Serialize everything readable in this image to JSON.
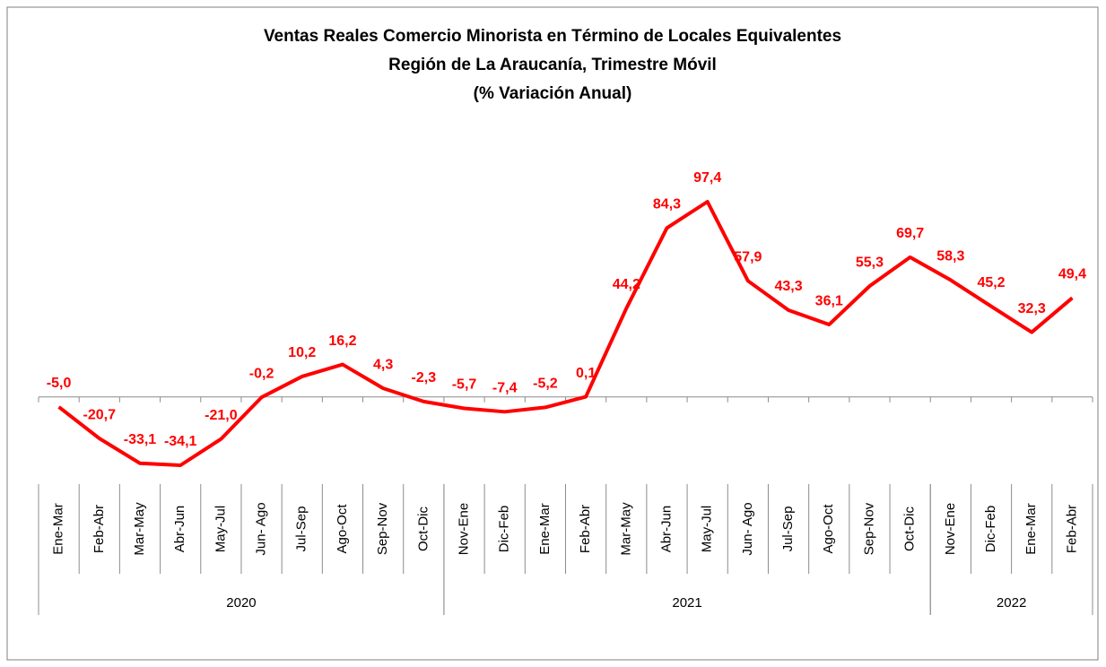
{
  "chart_data": {
    "type": "line",
    "title": [
      "Ventas Reales Comercio Minorista  en Término de Locales Equivalentes",
      "Región de La Araucanía, Trimestre Móvil",
      "(% Variación Anual)"
    ],
    "groups": [
      {
        "label": "2020",
        "categories": [
          "Ene-Mar",
          "Feb-Abr",
          "Mar-May",
          "Abr-Jun",
          "May-Jul",
          "Jun- Ago",
          "Jul-Sep",
          "Ago-Oct",
          "Sep-Nov",
          "Oct-Dic"
        ]
      },
      {
        "label": "2021",
        "categories": [
          "Nov-Ene",
          "Dic-Feb",
          "Ene-Mar",
          "Feb-Abr",
          "Mar-May",
          "Abr-Jun",
          "May-Jul",
          "Jun- Ago",
          "Jul-Sep",
          "Ago-Oct",
          "Sep-Nov",
          "Oct-Dic"
        ]
      },
      {
        "label": "2022",
        "categories": [
          "Nov-Ene",
          "Dic-Feb",
          "Ene-Mar",
          "Feb-Abr"
        ]
      }
    ],
    "series": [
      {
        "color": "#ff0000",
        "values": [
          -5.0,
          -20.7,
          -33.1,
          -34.1,
          -21.0,
          -0.2,
          10.2,
          16.2,
          4.3,
          -2.3,
          -5.7,
          -7.4,
          -5.2,
          0.1,
          44.2,
          84.3,
          97.4,
          57.9,
          43.3,
          36.1,
          55.3,
          69.7,
          58.3,
          45.2,
          32.3,
          49.4
        ],
        "value_labels": [
          "-5,0",
          "-20,7",
          "-33,1",
          "-34,1",
          "-21,0",
          "-0,2",
          "10,2",
          "16,2",
          "4,3",
          "-2,3",
          "-5,7",
          "-7,4",
          "-5,2",
          "0,1",
          "44,2",
          "84,3",
          "97,4",
          "57,9",
          "43,3",
          "36,1",
          "55,3",
          "69,7",
          "58,3",
          "45,2",
          "32,3",
          "49,4"
        ]
      }
    ]
  }
}
